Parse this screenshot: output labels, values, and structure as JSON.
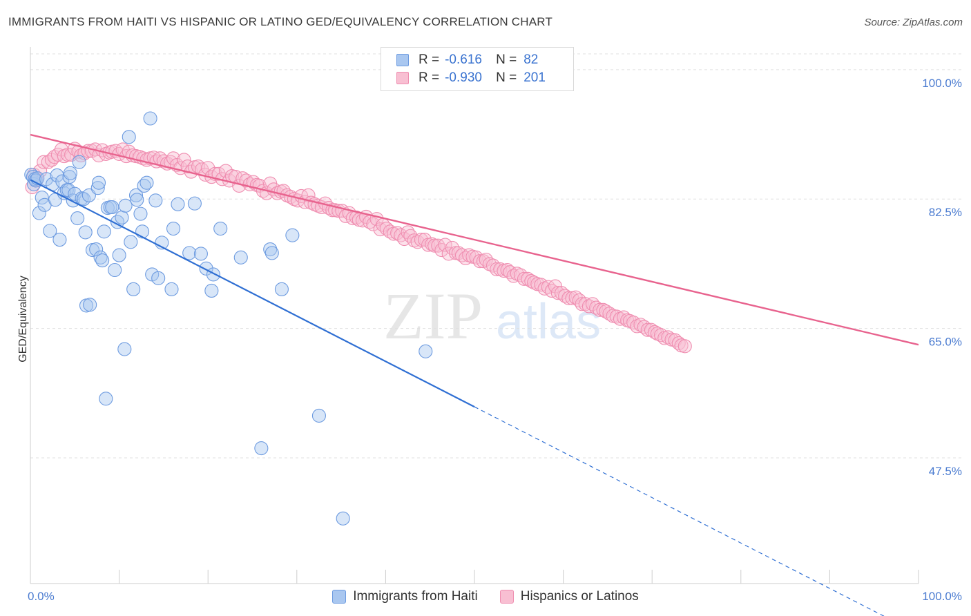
{
  "title": "IMMIGRANTS FROM HAITI VS HISPANIC OR LATINO GED/EQUIVALENCY CORRELATION CHART",
  "source": "Source: ZipAtlas.com",
  "watermark": {
    "zip": "ZIP",
    "atlas": "atlas"
  },
  "legend_top": [
    {
      "r_label": "R =",
      "r_value": "-0.616",
      "n_label": "N =",
      "n_value": "82",
      "color": "#a9c7f0",
      "stroke": "#6d9be0"
    },
    {
      "r_label": "R =",
      "r_value": "-0.930",
      "n_label": "N =",
      "n_value": "201",
      "color": "#f8bfd2",
      "stroke": "#ef8db0"
    }
  ],
  "legend_bottom": [
    {
      "label": "Immigrants from Haiti",
      "color": "#a9c7f0",
      "stroke": "#6d9be0"
    },
    {
      "label": "Hispanics or Latinos",
      "color": "#f8bfd2",
      "stroke": "#ef8db0"
    }
  ],
  "chart_data": {
    "type": "scatter",
    "title": "IMMIGRANTS FROM HAITI VS HISPANIC OR LATINO GED/EQUIVALENCY CORRELATION CHART",
    "xlabel": "",
    "ylabel": "GED/Equivalency",
    "xlim": [
      0,
      100
    ],
    "ylim": [
      30.5,
      104
    ],
    "x_tick_labels": [
      {
        "value": 0,
        "label": "0.0%"
      },
      {
        "value": 100,
        "label": "100.0%"
      }
    ],
    "y_ticks": [
      {
        "value": 100,
        "label": "100.0%"
      },
      {
        "value": 82.5,
        "label": "82.5%"
      },
      {
        "value": 65,
        "label": "65.0%"
      },
      {
        "value": 47.5,
        "label": "47.5%"
      }
    ],
    "grid": "horizontal-dashed",
    "colors": {
      "blue_fill": "#a9c7f0",
      "blue_stroke": "#6d9be0",
      "blue_line": "#2f6fd3",
      "pink_fill": "#f8bfd2",
      "pink_stroke": "#ef8db0",
      "pink_line": "#e8638e"
    },
    "series": [
      {
        "name": "Immigrants from Haiti",
        "trendline": {
          "x": [
            0,
            50,
            100
          ],
          "y": [
            85.1,
            54.4,
            23.7
          ],
          "solid_until_x": 50
        },
        "points": [
          [
            0.1,
            85.8
          ],
          [
            0.3,
            85.5
          ],
          [
            0.4,
            84.5
          ],
          [
            0.5,
            85.2
          ],
          [
            0.6,
            85.0
          ],
          [
            0.8,
            85.3
          ],
          [
            1.0,
            80.6
          ],
          [
            1.3,
            82.7
          ],
          [
            1.6,
            81.7
          ],
          [
            1.8,
            85.2
          ],
          [
            2.2,
            78.2
          ],
          [
            2.5,
            84.5
          ],
          [
            2.8,
            82.4
          ],
          [
            3.0,
            85.7
          ],
          [
            3.3,
            77.0
          ],
          [
            3.6,
            84.9
          ],
          [
            3.8,
            83.3
          ],
          [
            4.1,
            83.7
          ],
          [
            4.3,
            83.7
          ],
          [
            4.4,
            85.5
          ],
          [
            4.5,
            86.0
          ],
          [
            4.8,
            82.3
          ],
          [
            5.0,
            83.2
          ],
          [
            5.3,
            79.9
          ],
          [
            5.5,
            87.5
          ],
          [
            5.8,
            82.6
          ],
          [
            6.0,
            82.5
          ],
          [
            6.2,
            78.0
          ],
          [
            6.3,
            68.1
          ],
          [
            6.6,
            83.0
          ],
          [
            6.7,
            68.2
          ],
          [
            7.0,
            75.6
          ],
          [
            7.4,
            75.7
          ],
          [
            7.6,
            84.0
          ],
          [
            7.7,
            84.7
          ],
          [
            7.9,
            74.6
          ],
          [
            8.1,
            74.2
          ],
          [
            8.3,
            78.1
          ],
          [
            8.5,
            55.5
          ],
          [
            8.7,
            81.3
          ],
          [
            9.0,
            81.4
          ],
          [
            9.2,
            81.4
          ],
          [
            9.5,
            72.9
          ],
          [
            9.8,
            79.4
          ],
          [
            10.0,
            74.9
          ],
          [
            10.3,
            80.0
          ],
          [
            10.6,
            62.2
          ],
          [
            10.7,
            81.6
          ],
          [
            11.1,
            90.9
          ],
          [
            11.3,
            76.7
          ],
          [
            11.6,
            70.3
          ],
          [
            11.9,
            83.0
          ],
          [
            12.0,
            82.4
          ],
          [
            12.4,
            80.5
          ],
          [
            12.6,
            78.1
          ],
          [
            12.8,
            84.3
          ],
          [
            13.1,
            84.7
          ],
          [
            13.5,
            93.4
          ],
          [
            13.7,
            72.3
          ],
          [
            14.1,
            82.3
          ],
          [
            14.4,
            71.8
          ],
          [
            14.8,
            76.6
          ],
          [
            15.9,
            70.3
          ],
          [
            16.1,
            78.5
          ],
          [
            16.6,
            81.8
          ],
          [
            17.9,
            75.2
          ],
          [
            18.5,
            81.9
          ],
          [
            19.2,
            75.1
          ],
          [
            19.8,
            73.1
          ],
          [
            20.4,
            70.1
          ],
          [
            20.6,
            72.3
          ],
          [
            21.4,
            78.5
          ],
          [
            23.7,
            74.6
          ],
          [
            26.0,
            48.8
          ],
          [
            27.0,
            75.7
          ],
          [
            27.2,
            75.2
          ],
          [
            28.3,
            70.3
          ],
          [
            29.5,
            77.6
          ],
          [
            32.5,
            53.2
          ],
          [
            35.2,
            39.3
          ],
          [
            44.5,
            61.9
          ]
        ]
      },
      {
        "name": "Hispanics or Latinos",
        "trendline": {
          "x": [
            0,
            100
          ],
          "y": [
            91.2,
            62.8
          ]
        },
        "points": [
          [
            0.2,
            84.1
          ],
          [
            0.4,
            85.8
          ],
          [
            0.7,
            85.1
          ],
          [
            1.1,
            86.3
          ],
          [
            1.5,
            87.5
          ],
          [
            2.0,
            87.5
          ],
          [
            2.4,
            87.8
          ],
          [
            2.7,
            88.2
          ],
          [
            3.1,
            88.5
          ],
          [
            3.5,
            89.2
          ],
          [
            3.8,
            88.3
          ],
          [
            4.2,
            88.5
          ],
          [
            4.6,
            88.5
          ],
          [
            5.0,
            89.3
          ],
          [
            5.4,
            88.9
          ],
          [
            5.7,
            88.4
          ],
          [
            6.1,
            88.7
          ],
          [
            6.5,
            89.0
          ],
          [
            6.9,
            89.0
          ],
          [
            7.3,
            89.2
          ],
          [
            7.7,
            88.4
          ],
          [
            8.1,
            89.1
          ],
          [
            8.5,
            88.6
          ],
          [
            8.9,
            88.8
          ],
          [
            9.2,
            88.9
          ],
          [
            9.6,
            89.0
          ],
          [
            10.0,
            88.6
          ],
          [
            10.4,
            89.2
          ],
          [
            10.8,
            88.3
          ],
          [
            11.1,
            88.9
          ],
          [
            11.5,
            88.4
          ],
          [
            11.9,
            88.3
          ],
          [
            12.3,
            88.2
          ],
          [
            12.7,
            88.0
          ],
          [
            13.1,
            87.8
          ],
          [
            13.5,
            88.0
          ],
          [
            13.9,
            88.1
          ],
          [
            14.2,
            87.6
          ],
          [
            14.6,
            88.0
          ],
          [
            15.0,
            87.6
          ],
          [
            15.4,
            87.3
          ],
          [
            15.8,
            87.5
          ],
          [
            16.1,
            88.0
          ],
          [
            16.5,
            87.1
          ],
          [
            16.9,
            86.7
          ],
          [
            17.3,
            87.8
          ],
          [
            17.7,
            86.9
          ],
          [
            18.1,
            86.2
          ],
          [
            18.5,
            86.8
          ],
          [
            18.9,
            86.9
          ],
          [
            19.3,
            86.5
          ],
          [
            19.7,
            85.8
          ],
          [
            20.0,
            86.7
          ],
          [
            20.4,
            85.5
          ],
          [
            20.8,
            85.9
          ],
          [
            21.2,
            85.9
          ],
          [
            21.6,
            85.2
          ],
          [
            22.0,
            86.3
          ],
          [
            22.4,
            85.0
          ],
          [
            22.7,
            85.6
          ],
          [
            23.1,
            85.5
          ],
          [
            23.5,
            84.3
          ],
          [
            23.9,
            85.3
          ],
          [
            24.3,
            85.0
          ],
          [
            24.7,
            84.5
          ],
          [
            25.1,
            84.8
          ],
          [
            25.5,
            84.4
          ],
          [
            25.8,
            84.3
          ],
          [
            26.2,
            83.6
          ],
          [
            26.6,
            83.3
          ],
          [
            27.0,
            84.6
          ],
          [
            27.4,
            83.8
          ],
          [
            27.8,
            83.3
          ],
          [
            28.2,
            83.5
          ],
          [
            28.5,
            83.6
          ],
          [
            28.9,
            83.0
          ],
          [
            29.3,
            82.8
          ],
          [
            29.7,
            82.5
          ],
          [
            30.1,
            82.3
          ],
          [
            30.5,
            82.9
          ],
          [
            30.9,
            82.1
          ],
          [
            31.3,
            83.0
          ],
          [
            31.6,
            82.0
          ],
          [
            32.0,
            81.8
          ],
          [
            32.4,
            81.6
          ],
          [
            32.8,
            81.4
          ],
          [
            33.2,
            81.9
          ],
          [
            33.6,
            81.3
          ],
          [
            34.0,
            81.0
          ],
          [
            34.3,
            81.0
          ],
          [
            34.7,
            80.9
          ],
          [
            35.1,
            80.9
          ],
          [
            35.5,
            80.2
          ],
          [
            35.9,
            80.6
          ],
          [
            36.3,
            79.9
          ],
          [
            36.7,
            80.0
          ],
          [
            37.0,
            79.7
          ],
          [
            37.4,
            79.6
          ],
          [
            37.8,
            80.1
          ],
          [
            38.2,
            79.4
          ],
          [
            38.6,
            79.1
          ],
          [
            39.0,
            79.8
          ],
          [
            39.4,
            78.4
          ],
          [
            39.7,
            79.0
          ],
          [
            40.1,
            78.5
          ],
          [
            40.5,
            78.1
          ],
          [
            40.9,
            77.8
          ],
          [
            41.3,
            77.9
          ],
          [
            41.7,
            77.6
          ],
          [
            42.1,
            77.1
          ],
          [
            42.5,
            78.0
          ],
          [
            42.8,
            77.5
          ],
          [
            43.2,
            76.9
          ],
          [
            43.6,
            76.7
          ],
          [
            44.0,
            77.0
          ],
          [
            44.4,
            77.0
          ],
          [
            44.8,
            76.3
          ],
          [
            45.2,
            76.4
          ],
          [
            45.5,
            76.2
          ],
          [
            45.9,
            76.2
          ],
          [
            46.3,
            75.6
          ],
          [
            46.7,
            76.3
          ],
          [
            47.1,
            75.1
          ],
          [
            47.5,
            75.9
          ],
          [
            47.9,
            75.2
          ],
          [
            48.2,
            75.2
          ],
          [
            48.6,
            74.9
          ],
          [
            49.0,
            74.5
          ],
          [
            49.4,
            74.9
          ],
          [
            49.8,
            74.7
          ],
          [
            50.2,
            74.6
          ],
          [
            50.6,
            74.1
          ],
          [
            51.0,
            74.1
          ],
          [
            51.3,
            74.3
          ],
          [
            51.7,
            73.7
          ],
          [
            52.1,
            73.5
          ],
          [
            52.5,
            73.0
          ],
          [
            52.9,
            73.0
          ],
          [
            53.3,
            72.8
          ],
          [
            53.7,
            72.9
          ],
          [
            54.0,
            72.6
          ],
          [
            54.4,
            72.1
          ],
          [
            54.8,
            72.4
          ],
          [
            55.2,
            72.2
          ],
          [
            55.6,
            71.7
          ],
          [
            56.0,
            71.7
          ],
          [
            56.4,
            71.4
          ],
          [
            56.7,
            71.2
          ],
          [
            57.1,
            71.0
          ],
          [
            57.5,
            70.9
          ],
          [
            57.9,
            70.4
          ],
          [
            58.3,
            70.6
          ],
          [
            58.7,
            70.1
          ],
          [
            59.1,
            70.7
          ],
          [
            59.4,
            69.8
          ],
          [
            59.8,
            69.8
          ],
          [
            60.2,
            69.4
          ],
          [
            60.6,
            69.1
          ],
          [
            61.0,
            69.1
          ],
          [
            61.4,
            69.2
          ],
          [
            61.8,
            68.8
          ],
          [
            62.1,
            68.3
          ],
          [
            62.5,
            68.3
          ],
          [
            62.9,
            68.0
          ],
          [
            63.3,
            68.3
          ],
          [
            63.7,
            67.8
          ],
          [
            64.1,
            67.5
          ],
          [
            64.5,
            67.5
          ],
          [
            64.8,
            67.3
          ],
          [
            65.2,
            67.0
          ],
          [
            65.6,
            66.7
          ],
          [
            66.0,
            66.6
          ],
          [
            66.4,
            66.3
          ],
          [
            66.8,
            66.5
          ],
          [
            67.2,
            66.1
          ],
          [
            67.5,
            66.0
          ],
          [
            67.9,
            65.8
          ],
          [
            68.3,
            65.3
          ],
          [
            68.7,
            65.5
          ],
          [
            69.1,
            65.2
          ],
          [
            69.5,
            64.8
          ],
          [
            69.9,
            64.8
          ],
          [
            70.3,
            64.5
          ],
          [
            70.6,
            64.3
          ],
          [
            71.0,
            64.1
          ],
          [
            71.4,
            63.7
          ],
          [
            71.8,
            63.8
          ],
          [
            72.2,
            63.5
          ],
          [
            72.6,
            63.4
          ],
          [
            73.0,
            63.0
          ],
          [
            73.3,
            62.7
          ],
          [
            73.7,
            62.6
          ]
        ]
      }
    ]
  }
}
